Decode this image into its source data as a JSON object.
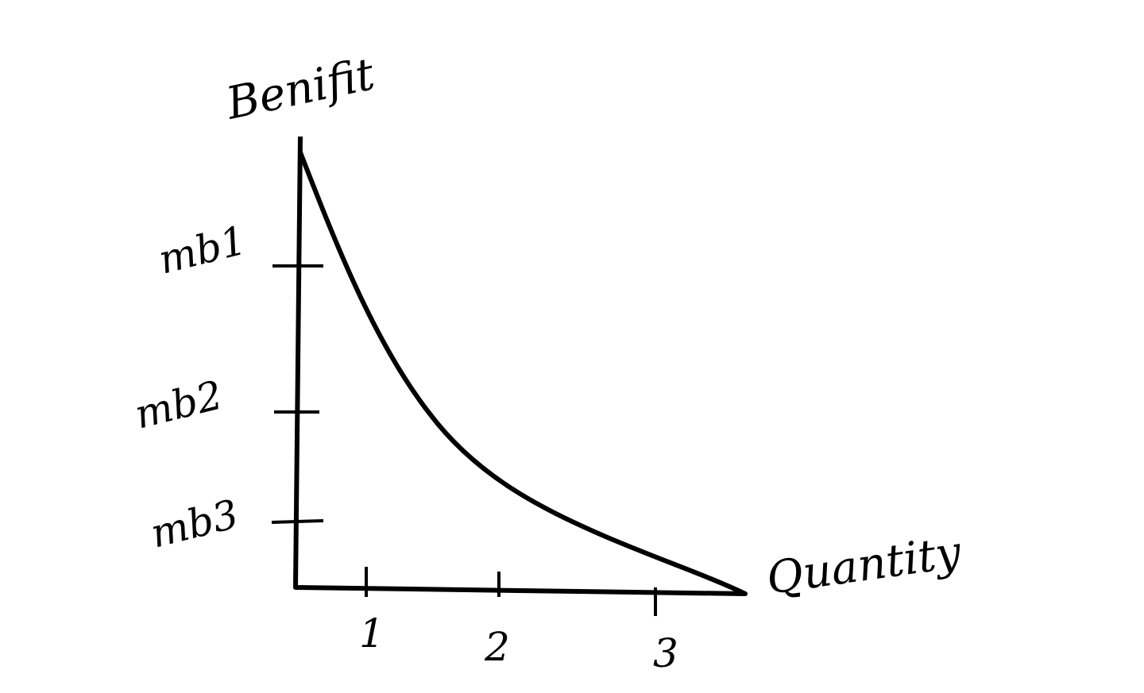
{
  "axes": {
    "y_label": "Benifit",
    "x_label": "Quantity"
  },
  "y_ticks": [
    "mb1",
    "mb2",
    "mb3"
  ],
  "x_ticks": [
    1,
    2,
    3
  ]
}
